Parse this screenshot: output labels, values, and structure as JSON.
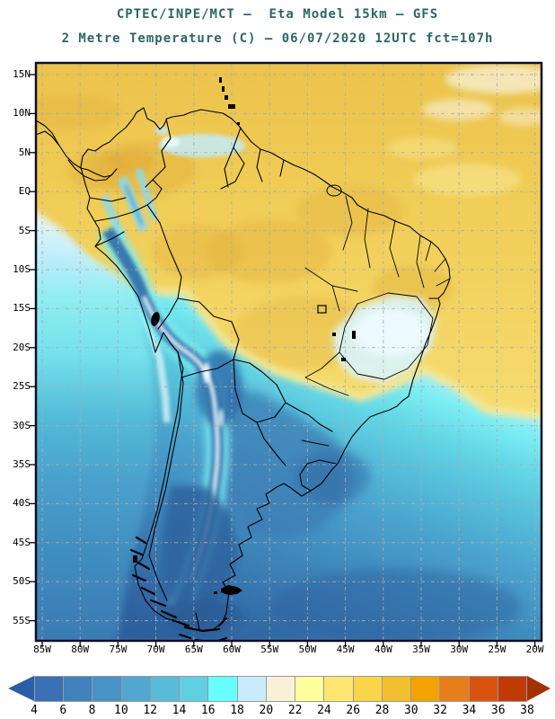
{
  "title": {
    "line1": "CPTEC/INPE/MCT –  Eta Model 15km – GFS",
    "line2": "2 Metre Temperature (C) – 06/07/2020 12UTC fct=107h"
  },
  "axes": {
    "lat": [
      "15N",
      "10N",
      "5N",
      "EQ",
      "5S",
      "10S",
      "15S",
      "20S",
      "25S",
      "30S",
      "35S",
      "40S",
      "45S",
      "50S",
      "55S"
    ],
    "lon": [
      "85W",
      "80W",
      "75W",
      "70W",
      "65W",
      "60W",
      "55W",
      "50W",
      "45W",
      "40W",
      "35W",
      "30W",
      "25W",
      "20W"
    ]
  },
  "colorbar": {
    "tick_labels": [
      "4",
      "6",
      "8",
      "10",
      "12",
      "14",
      "16",
      "18",
      "20",
      "22",
      "24",
      "26",
      "28",
      "30",
      "32",
      "34",
      "36",
      "38"
    ],
    "segment_colors": [
      "#3a70b4",
      "#4181bd",
      "#4a93c6",
      "#52a7d0",
      "#5abbd9",
      "#61cfe2",
      "#68ffff",
      "#c9ecfd",
      "#f9f0d8",
      "#ffff9e",
      "#ffe670",
      "#fad54a",
      "#f2bf2e",
      "#f2a303",
      "#e87d1b",
      "#d8540e",
      "#c03a06"
    ],
    "left_arrow_color": "#2a5ea6",
    "right_arrow_color": "#a33104",
    "divider_color": "#999999",
    "units": "C"
  },
  "palette": {
    "title_text": "#2c6665",
    "frame": "#0b1026",
    "grid": "#a9adb3",
    "tick": "#000000",
    "border_line": "#000000",
    "warm1": "#ecc34c",
    "warm2": "#f0cc55",
    "warm3": "#f3d462",
    "warm4": "#f5db6e",
    "warm5": "#f7e387",
    "warm6": "#f9eeae",
    "gold_patch": "#e2b13c",
    "orange_patch": "#dfa42f",
    "cream_patch": "#f6ecc8",
    "pale_band": "#f8eda8",
    "cream": "#faf2d8",
    "pale_cyan": "#cdeffd",
    "bright_cyan": "#7deef3",
    "cyan": "#62d5e5",
    "teal": "#54bcd9",
    "blue1": "#4ba3cd",
    "blue2": "#4290c1",
    "blue3": "#3a7cb3",
    "blue4": "#3269a5",
    "deep_blue": "#2d5f9c",
    "pac_pale": "#e9f7f0",
    "pac_cyan": "#93eef2",
    "pac_cyan2": "#74e2ec",
    "coastal_strip": "#d8f6f8",
    "se_pale": "#d9f4fc",
    "se_core": "#eefbff",
    "ven_streak": "#c2ecf8",
    "andes_cyan": "#8fd8ec",
    "andes_core": "#4aa8d8",
    "cold_land": "#3c7cb4",
    "andes_dark": "#2e6ca9",
    "ridge_white": "#f3fdff",
    "patagonia": "#2f649e",
    "far_south": "#2b5c95"
  }
}
